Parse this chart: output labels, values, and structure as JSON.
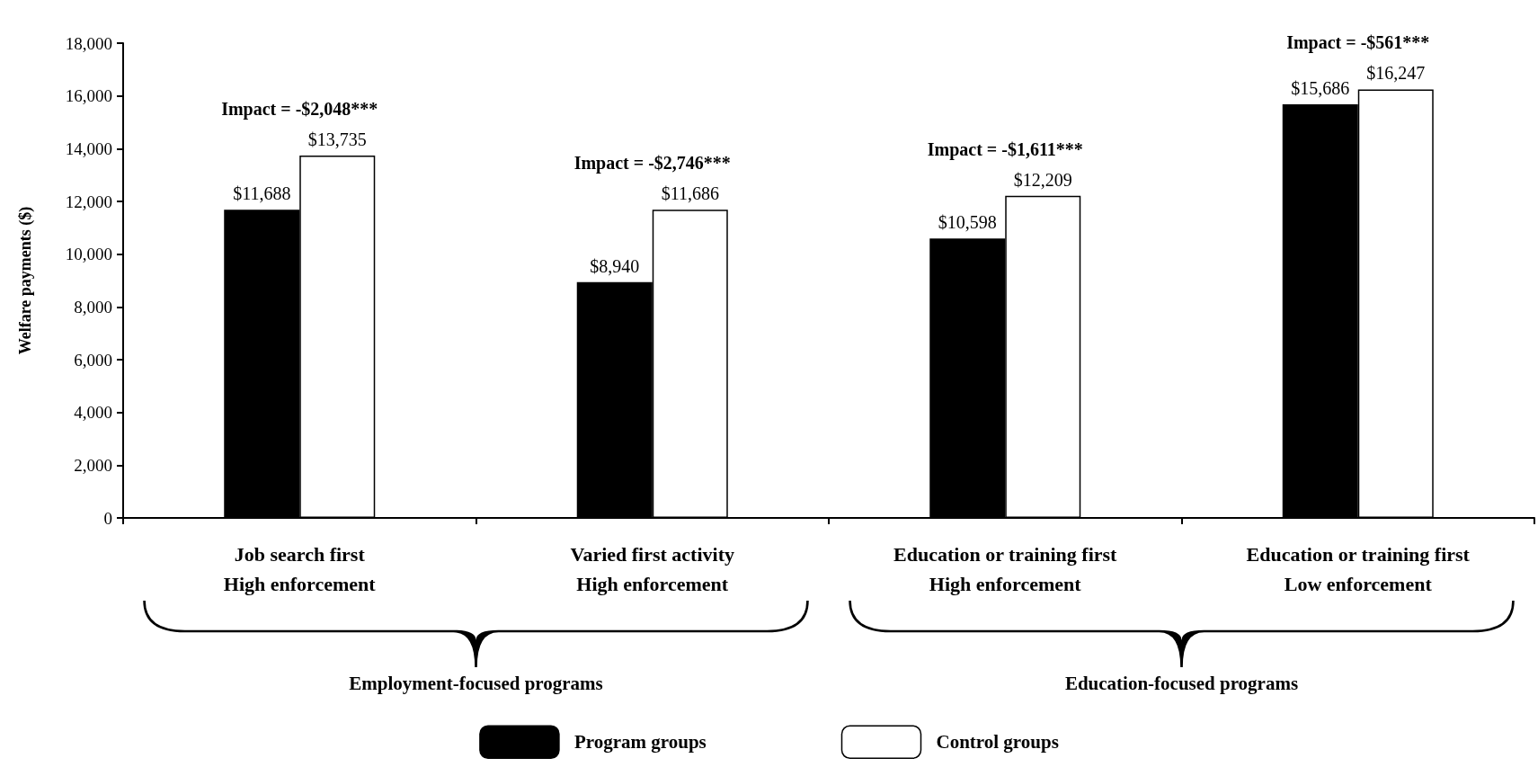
{
  "chart_data": {
    "type": "bar",
    "ylabel": "Welfare payments ($)",
    "categories": [
      "Job search first\nHigh enforcement",
      "Varied first activity\nHigh enforcement",
      "Education or training first\nHigh enforcement",
      "Education or training first\nLow enforcement"
    ],
    "series": [
      {
        "name": "Program groups",
        "color": "#000000",
        "values": [
          11688,
          8940,
          10598,
          15686
        ],
        "value_labels": [
          "$11,688",
          "$8,940",
          "$10,598",
          "$15,686"
        ]
      },
      {
        "name": "Control groups",
        "color": "#ffffff",
        "values": [
          13735,
          11686,
          12209,
          16247
        ],
        "value_labels": [
          "$13,735",
          "$11,686",
          "$12,209",
          "$16,247"
        ]
      }
    ],
    "ylim": [
      0,
      18000
    ],
    "yticks": [
      0,
      {
        "value": 2000,
        "label": "2,000"
      },
      {
        "value": 4000,
        "label": "4,000"
      },
      {
        "value": 6000,
        "label": "6,000"
      },
      {
        "value": 8000,
        "label": "8,000"
      },
      {
        "value": 10000,
        "label": "10,000"
      },
      {
        "value": 12000,
        "label": "12,000"
      },
      {
        "value": 14000,
        "label": "14,000"
      },
      {
        "value": 16000,
        "label": "16,000"
      },
      {
        "value": 18000,
        "label": "18,000"
      }
    ],
    "grid": false,
    "legend": "bottom",
    "annotations": [
      "Impact = -$2,048***",
      "Impact = -$2,746***",
      "Impact = -$1,611***",
      "Impact = -$561***",
      "Employment-focused programs",
      "Education-focused programs"
    ]
  }
}
